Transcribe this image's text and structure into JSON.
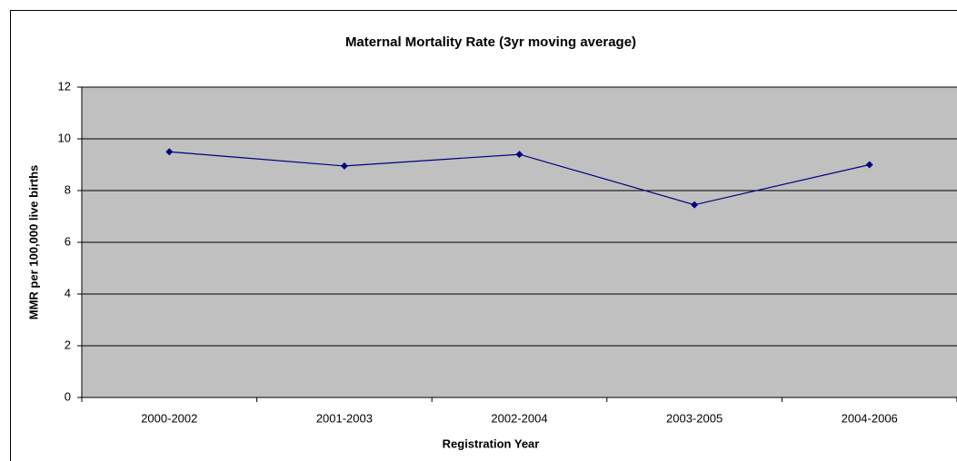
{
  "chart_data": {
    "type": "line",
    "title": "Maternal Mortality Rate (3yr moving average)",
    "x_label": "Registration Year",
    "y_label": "MMR per 100,000 live births",
    "categories": [
      "2000-2002",
      "2001-2003",
      "2002-2004",
      "2003-2005",
      "2004-2006"
    ],
    "series": [
      {
        "name": "MMR",
        "color": "#000080",
        "values": [
          9.5,
          8.95,
          9.4,
          7.45,
          9.0
        ]
      }
    ],
    "ylim": [
      0,
      12
    ],
    "yticks": [
      0,
      2,
      4,
      6,
      8,
      10,
      12
    ],
    "grid": true
  }
}
